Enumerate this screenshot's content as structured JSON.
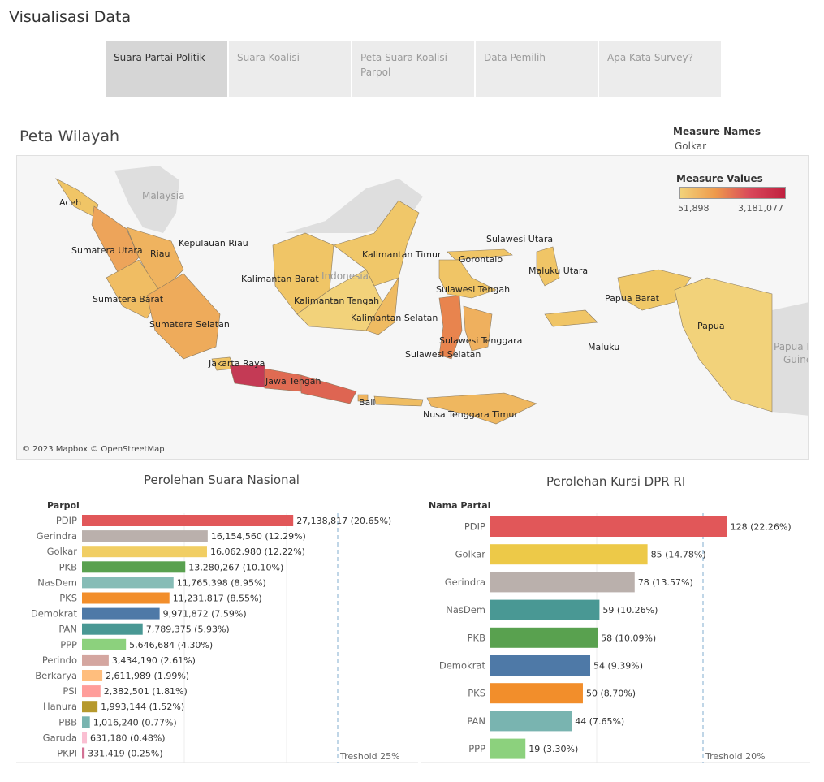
{
  "page_title": "Visualisasi Data",
  "tabs": [
    {
      "label": "Suara Partai Politik",
      "active": true
    },
    {
      "label": "Suara Koalisi",
      "active": false
    },
    {
      "label": "Peta Suara Koalisi Parpol",
      "active": false
    },
    {
      "label": "Data Pemilih",
      "active": false
    },
    {
      "label": "Apa Kata Survey?",
      "active": false
    }
  ],
  "map": {
    "title": "Peta Wilayah",
    "measure_names_title": "Measure Names",
    "measure_names_value": "Golkar",
    "legend_title": "Measure Values",
    "legend_min": "51,898",
    "legend_max": "3,181,077",
    "credit": "© 2023 Mapbox © OpenStreetMap",
    "labels": [
      "Aceh",
      "Malaysia",
      "Sumatera Utara",
      "Riau",
      "Kepulauan Riau",
      "Sumatera Barat",
      "Sumatera Selatan",
      "Jakarta Raya",
      "Jawa Tengah",
      "Bali",
      "Kalimantan Barat",
      "Kalimantan Tengah",
      "Kalimantan Timur",
      "Kalimantan Selatan",
      "Indonesia",
      "Sulawesi Utara",
      "Gorontalo",
      "Sulawesi Tengah",
      "Sulawesi Tenggara",
      "Sulawesi Selatan",
      "Maluku Utara",
      "Maluku",
      "Papua Barat",
      "Papua",
      "Nusa Tenggara Timur",
      "Papua N",
      "Guine"
    ]
  },
  "chart_data": [
    {
      "type": "bar",
      "title": "Perolehan Suara Nasional",
      "category_header": "Parpol",
      "threshold_label": "Treshold 25%",
      "threshold_value": 25,
      "categories": [
        "PDIP",
        "Gerindra",
        "Golkar",
        "PKB",
        "NasDem",
        "PKS",
        "Demokrat",
        "PAN",
        "PPP",
        "Perindo",
        "Berkarya",
        "PSI",
        "Hanura",
        "PBB",
        "Garuda",
        "PKPI"
      ],
      "values": [
        27138817,
        16154560,
        16062980,
        13280267,
        11765398,
        11231817,
        9971872,
        7789375,
        5646684,
        3434190,
        2611989,
        2382501,
        1993144,
        1016240,
        631180,
        331419
      ],
      "percents": [
        20.65,
        12.29,
        12.22,
        10.1,
        8.95,
        8.55,
        7.59,
        5.93,
        4.3,
        2.61,
        1.99,
        1.81,
        1.52,
        0.77,
        0.48,
        0.25
      ],
      "data_labels": [
        "27,138,817  (20.65%)",
        "16,154,560  (12.29%)",
        "16,062,980  (12.22%)",
        "13,280,267  (10.10%)",
        "11,765,398  (8.95%)",
        "11,231,817  (8.55%)",
        "9,971,872  (7.59%)",
        "7,789,375  (5.93%)",
        "5,646,684  (4.30%)",
        "3,434,190  (2.61%)",
        "2,611,989  (1.99%)",
        "2,382,501  (1.81%)",
        "1,993,144  (1.52%)",
        "1,016,240  (0.77%)",
        "631,180  (0.48%)",
        "331,419  (0.25%)"
      ],
      "colors": [
        "#e15759",
        "#bab0ac",
        "#f1ce63",
        "#59a14f",
        "#86bcb6",
        "#f28e2b",
        "#4e79a7",
        "#499894",
        "#8cd17d",
        "#d4a6a0",
        "#ffbe7d",
        "#ff9d9a",
        "#b6992d",
        "#79b4b0",
        "#fabfd2",
        "#d37295"
      ]
    },
    {
      "type": "bar",
      "title": "Perolehan Kursi DPR RI",
      "category_header": "Nama Partai",
      "threshold_label": "Treshold 20%",
      "threshold_value": 20,
      "categories": [
        "PDIP",
        "Golkar",
        "Gerindra",
        "NasDem",
        "PKB",
        "Demokrat",
        "PKS",
        "PAN",
        "PPP"
      ],
      "values": [
        128,
        85,
        78,
        59,
        58,
        54,
        50,
        44,
        19
      ],
      "percents": [
        22.26,
        14.78,
        13.57,
        10.26,
        10.09,
        9.39,
        8.7,
        7.65,
        3.3
      ],
      "data_labels": [
        "128 (22.26%)",
        "85 (14.78%)",
        "78 (13.57%)",
        "59 (10.26%)",
        "58 (10.09%)",
        "54 (9.39%)",
        "50 (8.70%)",
        "44 (7.65%)",
        "19 (3.30%)"
      ],
      "colors": [
        "#e15759",
        "#edc948",
        "#bab0ac",
        "#499894",
        "#59a14f",
        "#4e79a7",
        "#f28e2b",
        "#79b4b0",
        "#8cd17d"
      ]
    }
  ]
}
